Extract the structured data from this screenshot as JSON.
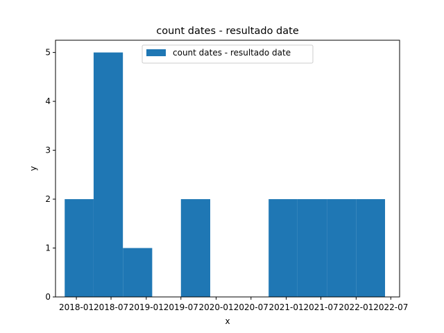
{
  "chart_data": {
    "type": "bar",
    "title": "count dates - resultado date",
    "xlabel": "x",
    "ylabel": "y",
    "ylim": [
      0,
      5.25
    ],
    "xlim": [
      "2017-09-14",
      "2022-08-16"
    ],
    "bins": [
      {
        "start": "2017-11-01",
        "end": "2018-04-01",
        "count": 2
      },
      {
        "start": "2018-04-01",
        "end": "2018-09-01",
        "count": 5
      },
      {
        "start": "2018-09-01",
        "end": "2019-02-01",
        "count": 1
      },
      {
        "start": "2019-02-01",
        "end": "2019-07-01",
        "count": 0
      },
      {
        "start": "2019-07-01",
        "end": "2019-12-01",
        "count": 2
      },
      {
        "start": "2019-12-01",
        "end": "2020-05-01",
        "count": 0
      },
      {
        "start": "2020-05-01",
        "end": "2020-10-01",
        "count": 0
      },
      {
        "start": "2020-10-01",
        "end": "2021-03-01",
        "count": 2
      },
      {
        "start": "2021-03-01",
        "end": "2021-08-01",
        "count": 2
      },
      {
        "start": "2021-08-01",
        "end": "2022-01-01",
        "count": 2
      },
      {
        "start": "2022-01-01",
        "end": "2022-06-01",
        "count": 2
      }
    ],
    "x_ticks": [
      {
        "date": "2018-01-01",
        "label": "2018-01"
      },
      {
        "date": "2018-07-01",
        "label": "2018-07"
      },
      {
        "date": "2019-01-01",
        "label": "2019-01"
      },
      {
        "date": "2019-07-01",
        "label": "2019-07"
      },
      {
        "date": "2020-01-01",
        "label": "2020-01"
      },
      {
        "date": "2020-07-01",
        "label": "2020-07"
      },
      {
        "date": "2021-01-01",
        "label": "2021-01"
      },
      {
        "date": "2021-07-01",
        "label": "2021-07"
      },
      {
        "date": "2022-01-01",
        "label": "2022-01"
      },
      {
        "date": "2022-07-01",
        "label": "2022-07"
      }
    ],
    "y_ticks": [
      0,
      1,
      2,
      3,
      4,
      5
    ],
    "legend": {
      "label": "count dates - resultado date",
      "placement": "upper center"
    },
    "bar_color": "#1f77b4",
    "grid": false
  }
}
